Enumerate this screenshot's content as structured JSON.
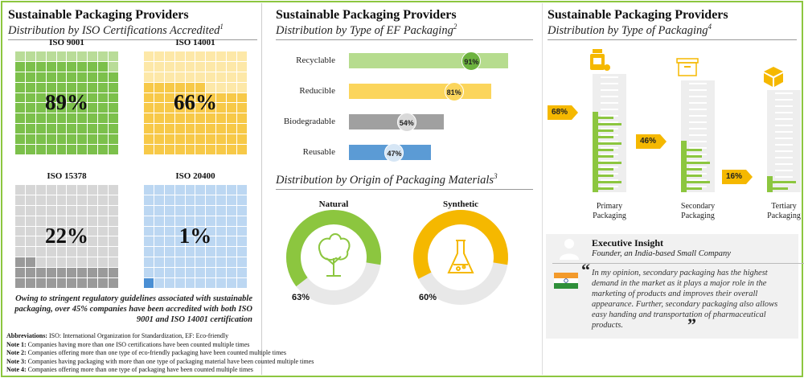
{
  "panel1": {
    "title": "Sustainable Packaging Providers",
    "subtitle": "Distribution by ISO Certifications Accredited",
    "sup": "1",
    "callout": "Owing to stringent regulatory guidelines associated with sustainable packaging, over 45% companies have been accredited with both ISO 9001 and ISO 14001 certification",
    "notes": [
      {
        "k": "Abbreviations:",
        "t": " ISO: International Organization for Standardization, EF: Eco-friendly"
      },
      {
        "k": "Note 1:",
        "t": " Companies having more than one ISO certifications have been counted multiple times"
      },
      {
        "k": "Note 2:",
        "t": " Companies offering more than one type of eco-friendly packaging have been counted multiple times"
      },
      {
        "k": "Note 3:",
        "t": " Companies having packaging with more than one type of packaging material have been counted multiple times"
      },
      {
        "k": "Note 4:",
        "t": " Companies offering more than one type of packaging have been counted multiple times"
      }
    ]
  },
  "panel2": {
    "title": "Sustainable Packaging Providers",
    "subtitle": "Distribution by Type of EF Packaging",
    "sup": "2",
    "subtitle2": "Distribution by Origin of Packaging Materials",
    "sup2": "3"
  },
  "panel3": {
    "title": "Sustainable Packaging Providers",
    "subtitle": "Distribution by Type of Packaging",
    "sup": "4"
  },
  "insight": {
    "heading": "Executive Insight",
    "source": "Founder, an India-based Small Company",
    "open_quote": "“",
    "close_quote": "”",
    "quote": "In my opinion, secondary packaging has the highest demand in the market as it plays a major role in the marketing of products and improves their overall appearance. Further, secondary packaging also allows easy handing and transportation of pharmaceutical products."
  },
  "chart_data": [
    {
      "type": "waffle",
      "title": "Distribution by ISO Certifications Accredited",
      "categories": [
        "ISO 9001",
        "ISO 14001",
        "ISO 15378",
        "ISO 20400"
      ],
      "values": [
        89,
        66,
        22,
        1
      ],
      "labels": [
        "89%",
        "66%",
        "22%",
        "1%"
      ],
      "colors": [
        {
          "fill": "#7cc04b",
          "empty": "#b9dc98"
        },
        {
          "fill": "#f7c948",
          "empty": "#fde8a8"
        },
        {
          "fill": "#9a9a9a",
          "empty": "#d6d6d6"
        },
        {
          "fill": "#4a8fd4",
          "empty": "#bcd7f2"
        }
      ]
    },
    {
      "type": "bar",
      "title": "Distribution by Type of EF Packaging",
      "categories": [
        "Recyclable",
        "Reducible",
        "Biodegradable",
        "Reusable"
      ],
      "values": [
        91,
        81,
        54,
        47
      ],
      "labels": [
        "91%",
        "81%",
        "54%",
        "47%"
      ],
      "colors": [
        "#b6dc8e",
        "#fbd55c",
        "#a0a0a0",
        "#5b9bd5"
      ],
      "badge_colors": [
        "#6db33f",
        "#fbd55c",
        "#d9d9d9",
        "#d6e6f5"
      ],
      "ylim": [
        0,
        100
      ]
    },
    {
      "type": "pie",
      "title": "Distribution by Origin of Packaging Materials",
      "categories": [
        "Natural",
        "Synthetic"
      ],
      "values": [
        63,
        60
      ],
      "labels": [
        "63%",
        "60%"
      ],
      "colors": [
        "#8cc63f",
        "#f5b800"
      ]
    },
    {
      "type": "bar",
      "title": "Distribution by Type of Packaging",
      "categories": [
        "Primary Packaging",
        "Secondary Packaging",
        "Tertiary Packaging"
      ],
      "values": [
        68,
        46,
        16
      ],
      "labels": [
        "68%",
        "46%",
        "16%"
      ],
      "colors": [
        "#8cc63f",
        "#8cc63f",
        "#8cc63f"
      ],
      "ylim": [
        0,
        100
      ]
    }
  ]
}
